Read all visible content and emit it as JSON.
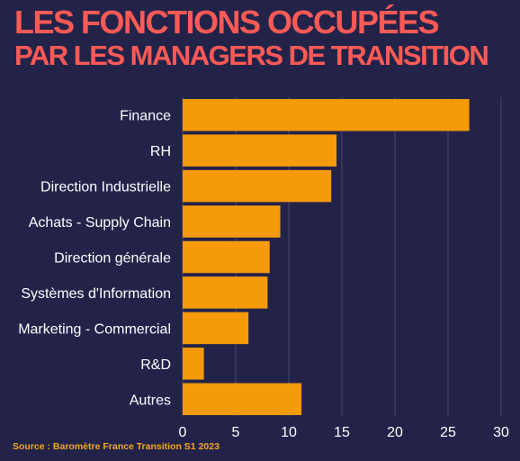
{
  "header": {
    "title_line1": "LES FONCTIONS OCCUPÉES",
    "title_line2": "PAR LES MANAGERS DE TRANSITION"
  },
  "footer": {
    "source": "Source : Baromètre France Transition S1 2023"
  },
  "colors": {
    "background": "#23234a",
    "bar": "#f59a08",
    "title": "#ff5a55",
    "source": "#f5a623",
    "text": "#ffffff",
    "grid": "#4a4a6e"
  },
  "chart_data": {
    "type": "bar",
    "orientation": "horizontal",
    "categories": [
      "Finance",
      "RH",
      "Direction Industrielle",
      "Achats - Supply Chain",
      "Direction générale",
      "Systèmes d'Information",
      "Marketing - Commercial",
      "R&D",
      "Autres"
    ],
    "values": [
      27,
      14.5,
      14,
      9.2,
      8.2,
      8,
      6.2,
      2,
      11.2
    ],
    "xlim": [
      0,
      30
    ],
    "xticks": [
      0,
      5,
      10,
      15,
      20,
      25,
      30
    ],
    "grid": true
  }
}
